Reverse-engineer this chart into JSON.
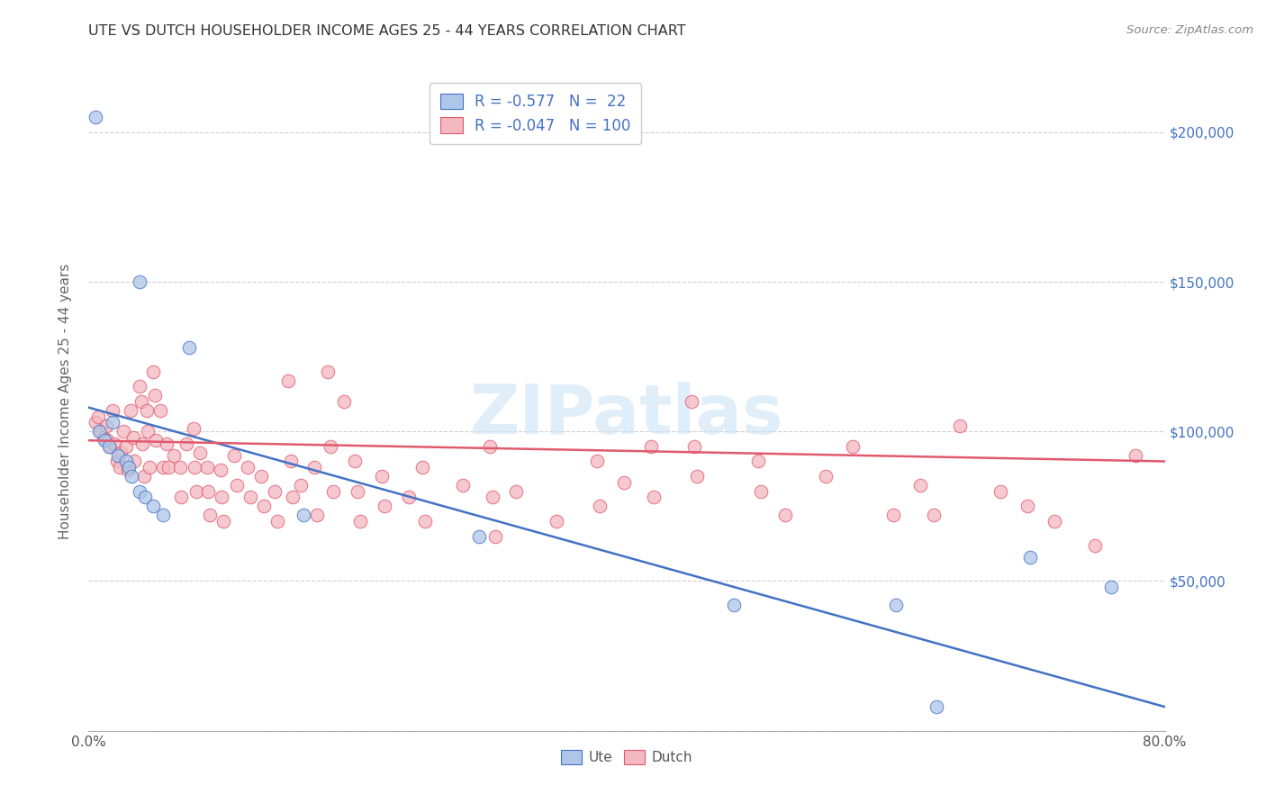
{
  "title": "UTE VS DUTCH HOUSEHOLDER INCOME AGES 25 - 44 YEARS CORRELATION CHART",
  "source": "Source: ZipAtlas.com",
  "ylabel": "Householder Income Ages 25 - 44 years",
  "xlim": [
    0.0,
    0.8
  ],
  "ylim": [
    0,
    220000
  ],
  "yticks": [
    0,
    50000,
    100000,
    150000,
    200000
  ],
  "bg_color": "#ffffff",
  "grid_color": "#d0d0d0",
  "watermark": "ZIPatlas",
  "ute_color": "#aec6e8",
  "dutch_color": "#f4b8c1",
  "ute_line_color": "#4472c4",
  "dutch_line_color": "#e05a6e",
  "right_ytick_labels": [
    "$200,000",
    "$150,000",
    "$100,000",
    "$50,000"
  ],
  "right_ytick_values": [
    200000,
    150000,
    100000,
    50000
  ],
  "right_label_color": "#4472c4",
  "ute_points": [
    [
      0.005,
      205000
    ],
    [
      0.038,
      150000
    ],
    [
      0.075,
      128000
    ],
    [
      0.018,
      103000
    ],
    [
      0.008,
      100000
    ],
    [
      0.012,
      97000
    ],
    [
      0.015,
      95000
    ],
    [
      0.022,
      92000
    ],
    [
      0.028,
      90000
    ],
    [
      0.03,
      88000
    ],
    [
      0.032,
      85000
    ],
    [
      0.038,
      80000
    ],
    [
      0.042,
      78000
    ],
    [
      0.048,
      75000
    ],
    [
      0.055,
      72000
    ],
    [
      0.16,
      72000
    ],
    [
      0.29,
      65000
    ],
    [
      0.48,
      42000
    ],
    [
      0.6,
      42000
    ],
    [
      0.63,
      8000
    ],
    [
      0.7,
      58000
    ],
    [
      0.76,
      48000
    ]
  ],
  "dutch_points": [
    [
      0.005,
      103000
    ],
    [
      0.007,
      105000
    ],
    [
      0.009,
      100000
    ],
    [
      0.011,
      98000
    ],
    [
      0.013,
      102000
    ],
    [
      0.014,
      97000
    ],
    [
      0.016,
      95000
    ],
    [
      0.018,
      107000
    ],
    [
      0.019,
      96000
    ],
    [
      0.021,
      90000
    ],
    [
      0.023,
      88000
    ],
    [
      0.024,
      93000
    ],
    [
      0.026,
      100000
    ],
    [
      0.028,
      95000
    ],
    [
      0.029,
      87000
    ],
    [
      0.031,
      107000
    ],
    [
      0.033,
      98000
    ],
    [
      0.034,
      90000
    ],
    [
      0.038,
      115000
    ],
    [
      0.039,
      110000
    ],
    [
      0.04,
      96000
    ],
    [
      0.041,
      85000
    ],
    [
      0.043,
      107000
    ],
    [
      0.044,
      100000
    ],
    [
      0.045,
      88000
    ],
    [
      0.048,
      120000
    ],
    [
      0.049,
      112000
    ],
    [
      0.05,
      97000
    ],
    [
      0.053,
      107000
    ],
    [
      0.055,
      88000
    ],
    [
      0.058,
      96000
    ],
    [
      0.059,
      88000
    ],
    [
      0.063,
      92000
    ],
    [
      0.068,
      88000
    ],
    [
      0.069,
      78000
    ],
    [
      0.073,
      96000
    ],
    [
      0.078,
      101000
    ],
    [
      0.079,
      88000
    ],
    [
      0.08,
      80000
    ],
    [
      0.083,
      93000
    ],
    [
      0.088,
      88000
    ],
    [
      0.089,
      80000
    ],
    [
      0.09,
      72000
    ],
    [
      0.098,
      87000
    ],
    [
      0.099,
      78000
    ],
    [
      0.1,
      70000
    ],
    [
      0.108,
      92000
    ],
    [
      0.11,
      82000
    ],
    [
      0.118,
      88000
    ],
    [
      0.12,
      78000
    ],
    [
      0.128,
      85000
    ],
    [
      0.13,
      75000
    ],
    [
      0.138,
      80000
    ],
    [
      0.14,
      70000
    ],
    [
      0.148,
      117000
    ],
    [
      0.15,
      90000
    ],
    [
      0.152,
      78000
    ],
    [
      0.158,
      82000
    ],
    [
      0.168,
      88000
    ],
    [
      0.17,
      72000
    ],
    [
      0.178,
      120000
    ],
    [
      0.18,
      95000
    ],
    [
      0.182,
      80000
    ],
    [
      0.19,
      110000
    ],
    [
      0.198,
      90000
    ],
    [
      0.2,
      80000
    ],
    [
      0.202,
      70000
    ],
    [
      0.218,
      85000
    ],
    [
      0.22,
      75000
    ],
    [
      0.238,
      78000
    ],
    [
      0.248,
      88000
    ],
    [
      0.25,
      70000
    ],
    [
      0.278,
      82000
    ],
    [
      0.298,
      95000
    ],
    [
      0.3,
      78000
    ],
    [
      0.302,
      65000
    ],
    [
      0.318,
      80000
    ],
    [
      0.348,
      70000
    ],
    [
      0.378,
      90000
    ],
    [
      0.38,
      75000
    ],
    [
      0.398,
      83000
    ],
    [
      0.418,
      95000
    ],
    [
      0.42,
      78000
    ],
    [
      0.448,
      110000
    ],
    [
      0.45,
      95000
    ],
    [
      0.452,
      85000
    ],
    [
      0.498,
      90000
    ],
    [
      0.5,
      80000
    ],
    [
      0.518,
      72000
    ],
    [
      0.548,
      85000
    ],
    [
      0.568,
      95000
    ],
    [
      0.598,
      72000
    ],
    [
      0.618,
      82000
    ],
    [
      0.628,
      72000
    ],
    [
      0.648,
      102000
    ],
    [
      0.678,
      80000
    ],
    [
      0.698,
      75000
    ],
    [
      0.718,
      70000
    ],
    [
      0.748,
      62000
    ],
    [
      0.778,
      92000
    ]
  ],
  "ute_trend_x": [
    0.0,
    0.8
  ],
  "ute_trend_y": [
    108000,
    8000
  ],
  "dutch_trend_x": [
    0.0,
    0.8
  ],
  "dutch_trend_y": [
    97000,
    90000
  ]
}
